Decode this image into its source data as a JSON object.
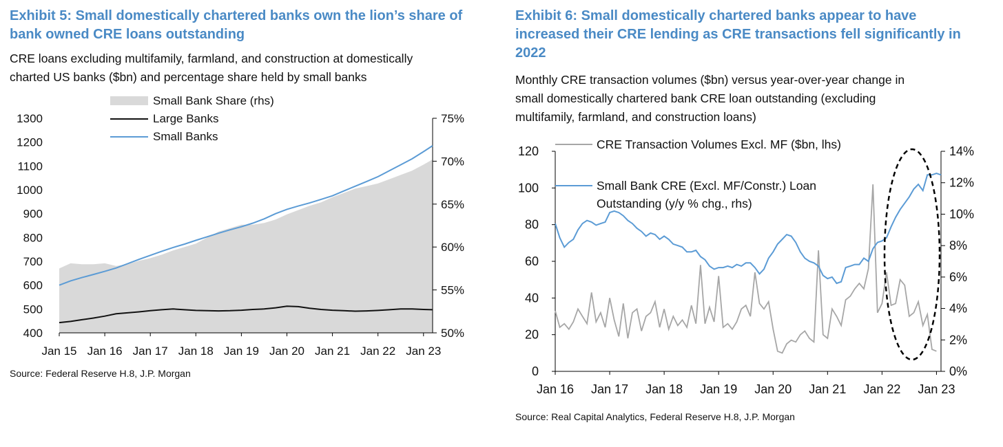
{
  "exhibit5": {
    "title_line1": "Exhibit 5: Small domestically chartered banks own the lion’s share of",
    "title_line2": "bank owned CRE loans outstanding",
    "subtitle_line1": "CRE loans excluding multifamily, farmland, and construction at domestically",
    "subtitle_line2": "charted US banks ($bn) and percentage share held by small banks",
    "source": "Source: Federal Reserve H.8, J.P. Morgan"
  },
  "exhibit6": {
    "title_line1": "Exhibit 6: Small domestically chartered banks appear to have",
    "title_line2": "increased their CRE lending as CRE transactions fell significantly in",
    "title_line3": "2022",
    "subtitle_line1": "Monthly CRE transaction volumes ($bn) versus year-over-year change in",
    "subtitle_line2": "small domestically chartered bank CRE loan outstanding (excluding",
    "subtitle_line3": "multifamily, farmland, and construction loans)",
    "source": "Source: Real Capital Analytics, Federal Reserve H.8, J.P. Morgan"
  },
  "colors": {
    "title": "#4a8ac5",
    "small_banks": "#5b9bd5",
    "large_banks": "#111111",
    "share_fill": "#d9d9d9",
    "transactions": "#a6a6a6",
    "ellipse": "#000000"
  },
  "chart_data": [
    {
      "type": "line",
      "title": "Exhibit 5",
      "x_ticks": [
        "Jan 15",
        "Jan 16",
        "Jan 17",
        "Jan 18",
        "Jan 19",
        "Jan 20",
        "Jan 21",
        "Jan 22",
        "Jan 23"
      ],
      "ylim": [
        400,
        1300
      ],
      "y_ticks": [
        "1300",
        "1200",
        "1100",
        "1000",
        "900",
        "800",
        "700",
        "600",
        "500",
        "400"
      ],
      "y2lim": [
        50,
        75
      ],
      "y2_ticks": [
        "75%",
        "70%",
        "65%",
        "60%",
        "55%",
        "50%"
      ],
      "legend": [
        "Small Bank Share (rhs)",
        "Large Banks",
        "Small Banks"
      ],
      "series": [
        {
          "name": "Small Bank Share (rhs)",
          "axis": "right",
          "type": "area",
          "x": [
            0,
            0.25,
            0.5,
            0.75,
            1,
            1.25,
            1.5,
            1.75,
            2,
            2.25,
            2.5,
            2.75,
            3,
            3.25,
            3.5,
            3.75,
            4,
            4.25,
            4.5,
            4.75,
            5,
            5.25,
            5.5,
            5.75,
            6,
            6.25,
            6.5,
            6.75,
            7,
            7.25,
            7.5,
            7.75,
            8,
            8.2
          ],
          "values": [
            57.5,
            58.1,
            58.0,
            58.0,
            58.1,
            57.8,
            58.0,
            58.4,
            58.7,
            59.1,
            59.6,
            60.0,
            60.4,
            61.1,
            61.8,
            62.2,
            62.6,
            62.6,
            62.8,
            63.2,
            63.8,
            64.3,
            64.8,
            65.2,
            65.8,
            66.3,
            66.8,
            67.1,
            67.4,
            67.9,
            68.4,
            68.9,
            69.6,
            70.2
          ]
        },
        {
          "name": "Large Banks",
          "axis": "left",
          "x": [
            0,
            0.25,
            0.5,
            0.75,
            1,
            1.25,
            1.5,
            1.75,
            2,
            2.25,
            2.5,
            2.75,
            3,
            3.25,
            3.5,
            3.75,
            4,
            4.25,
            4.5,
            4.75,
            5,
            5.25,
            5.5,
            5.75,
            6,
            6.25,
            6.5,
            6.75,
            7,
            7.25,
            7.5,
            7.75,
            8,
            8.2
          ],
          "values": [
            443,
            448,
            455,
            462,
            470,
            480,
            484,
            488,
            493,
            497,
            500,
            497,
            494,
            493,
            492,
            493,
            495,
            498,
            500,
            505,
            512,
            510,
            503,
            498,
            495,
            493,
            491,
            492,
            494,
            497,
            500,
            500,
            498,
            497
          ]
        },
        {
          "name": "Small Banks",
          "axis": "left",
          "x": [
            0,
            0.25,
            0.5,
            0.75,
            1,
            1.25,
            1.5,
            1.75,
            2,
            2.25,
            2.5,
            2.75,
            3,
            3.25,
            3.5,
            3.75,
            4,
            4.25,
            4.5,
            4.75,
            5,
            5.25,
            5.5,
            5.75,
            6,
            6.25,
            6.5,
            6.75,
            7,
            7.25,
            7.5,
            7.75,
            8,
            8.2
          ],
          "values": [
            600,
            618,
            632,
            645,
            658,
            672,
            690,
            708,
            725,
            742,
            758,
            772,
            788,
            803,
            818,
            832,
            845,
            860,
            878,
            900,
            918,
            932,
            945,
            960,
            975,
            995,
            1015,
            1035,
            1055,
            1080,
            1105,
            1130,
            1160,
            1185
          ]
        }
      ]
    },
    {
      "type": "line",
      "title": "Exhibit 6",
      "x_ticks": [
        "Jan 16",
        "Jan 17",
        "Jan 18",
        "Jan 19",
        "Jan 20",
        "Jan 21",
        "Jan 22",
        "Jan 23"
      ],
      "ylim": [
        0,
        120
      ],
      "y_ticks": [
        "120",
        "100",
        "80",
        "60",
        "40",
        "20",
        "0"
      ],
      "y2lim": [
        0,
        14
      ],
      "y2_ticks": [
        "14%",
        "12%",
        "10%",
        "8%",
        "6%",
        "4%",
        "2%",
        "0%"
      ],
      "legend": [
        "CRE Transaction Volumes Excl. MF ($bn, lhs)",
        "Small Bank CRE (Excl. MF/Constr.) Loan",
        "Outstanding (y/y % chg., rhs)"
      ],
      "annotation": "dashed ellipse highlighting 2022",
      "series": [
        {
          "name": "CRE Transaction Volumes Excl. MF ($bn, lhs)",
          "axis": "left",
          "x": [
            0,
            0.083,
            0.167,
            0.25,
            0.333,
            0.417,
            0.5,
            0.583,
            0.667,
            0.75,
            0.833,
            0.917,
            1,
            1.083,
            1.167,
            1.25,
            1.333,
            1.417,
            1.5,
            1.583,
            1.667,
            1.75,
            1.833,
            1.917,
            2,
            2.083,
            2.167,
            2.25,
            2.333,
            2.417,
            2.5,
            2.583,
            2.667,
            2.75,
            2.833,
            2.917,
            3,
            3.083,
            3.167,
            3.25,
            3.333,
            3.417,
            3.5,
            3.583,
            3.667,
            3.75,
            3.833,
            3.917,
            4,
            4.083,
            4.167,
            4.25,
            4.333,
            4.417,
            4.5,
            4.583,
            4.667,
            4.75,
            4.833,
            4.917,
            5,
            5.083,
            5.167,
            5.25,
            5.333,
            5.417,
            5.5,
            5.583,
            5.667,
            5.75,
            5.833,
            5.917,
            6,
            6.083,
            6.167,
            6.25,
            6.333,
            6.417,
            6.5,
            6.583,
            6.667,
            6.75,
            6.833,
            6.917,
            7
          ],
          "values": [
            33,
            24,
            26,
            23,
            27,
            34,
            30,
            26,
            43,
            27,
            32,
            24,
            40,
            28,
            19,
            37,
            18,
            32,
            34,
            22,
            30,
            32,
            38,
            24,
            34,
            23,
            30,
            25,
            28,
            24,
            36,
            26,
            58,
            26,
            35,
            27,
            52,
            24,
            26,
            23,
            27,
            34,
            36,
            30,
            54,
            37,
            34,
            38,
            23,
            11,
            10,
            15,
            17,
            16,
            20,
            22,
            18,
            16,
            66,
            20,
            18,
            34,
            30,
            25,
            39,
            41,
            45,
            48,
            45,
            56,
            102,
            32,
            37,
            54,
            36,
            37,
            50,
            47,
            30,
            32,
            38,
            25,
            31,
            12,
            11
          ]
        },
        {
          "name": "Small Bank CRE (Excl. MF/Constr.) Loan Outstanding (y/y % chg., rhs)",
          "axis": "right",
          "x": [
            0,
            0.083,
            0.167,
            0.25,
            0.333,
            0.417,
            0.5,
            0.583,
            0.667,
            0.75,
            0.833,
            0.917,
            1,
            1.083,
            1.167,
            1.25,
            1.333,
            1.417,
            1.5,
            1.583,
            1.667,
            1.75,
            1.833,
            1.917,
            2,
            2.083,
            2.167,
            2.25,
            2.333,
            2.417,
            2.5,
            2.583,
            2.667,
            2.75,
            2.833,
            2.917,
            3,
            3.083,
            3.167,
            3.25,
            3.333,
            3.417,
            3.5,
            3.583,
            3.667,
            3.75,
            3.833,
            3.917,
            4,
            4.083,
            4.167,
            4.25,
            4.333,
            4.417,
            4.5,
            4.583,
            4.667,
            4.75,
            4.833,
            4.917,
            5,
            5.083,
            5.167,
            5.25,
            5.333,
            5.417,
            5.5,
            5.583,
            5.667,
            5.75,
            5.833,
            5.917,
            6,
            6.083,
            6.167,
            6.25,
            6.333,
            6.417,
            6.5,
            6.583,
            6.667,
            6.75,
            6.833,
            6.917,
            7,
            7.083
          ],
          "values": [
            9.4,
            8.5,
            7.9,
            8.2,
            8.4,
            9.0,
            9.4,
            9.6,
            9.5,
            9.3,
            9.4,
            9.5,
            10.1,
            10.2,
            10.1,
            9.9,
            9.6,
            9.4,
            9.1,
            8.9,
            8.6,
            8.8,
            8.7,
            8.4,
            8.6,
            8.4,
            8.1,
            8.0,
            7.9,
            7.6,
            7.6,
            7.7,
            7.3,
            7.1,
            6.7,
            6.5,
            6.6,
            6.6,
            6.7,
            6.6,
            6.8,
            6.7,
            6.9,
            6.9,
            6.6,
            6.2,
            6.5,
            7.2,
            7.6,
            8.1,
            8.4,
            8.7,
            8.6,
            8.2,
            7.6,
            7.2,
            7.0,
            6.9,
            6.7,
            6.1,
            5.9,
            6.0,
            5.6,
            5.7,
            6.6,
            6.7,
            6.8,
            6.8,
            7.2,
            7.0,
            7.8,
            8.2,
            8.3,
            8.5,
            9.2,
            9.8,
            10.3,
            10.7,
            11.1,
            11.6,
            11.9,
            11.5,
            12.5,
            12.5,
            12.6,
            12.5
          ]
        }
      ]
    }
  ]
}
